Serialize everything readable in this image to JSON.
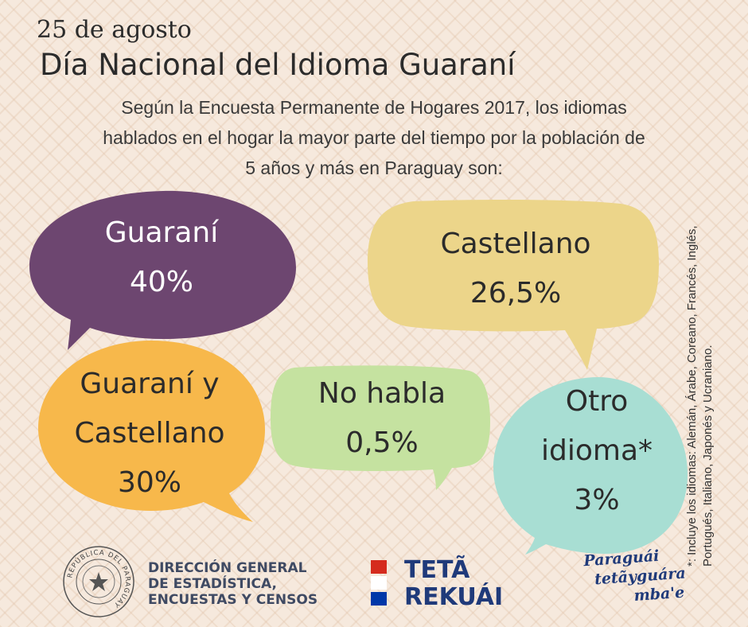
{
  "header": {
    "date": "25 de agosto",
    "title": "Día Nacional del Idioma Guaraní",
    "intro": [
      "Según la Encuesta Permanente de Hogares 2017, los idiomas",
      "hablados en el hogar la mayor parte del tiempo por la población de",
      "5 años y más en Paraguay son:"
    ]
  },
  "bubbles": [
    {
      "lines": [
        "Guaraní",
        "40%"
      ],
      "value": 40,
      "color": "#6d4670",
      "text_color": "#ffffff"
    },
    {
      "lines": [
        "Castellano",
        "26,5%"
      ],
      "value": 26.5,
      "color": "#ecd58a",
      "text_color": "#2b2b2b"
    },
    {
      "lines": [
        "Guaraní y",
        "Castellano",
        "30%"
      ],
      "value": 30,
      "color": "#f7b84b",
      "text_color": "#2b2b2b"
    },
    {
      "lines": [
        "No habla",
        "0,5%"
      ],
      "value": 0.5,
      "color": "#c5e2a0",
      "text_color": "#2b2b2b"
    },
    {
      "lines": [
        "Otro",
        "idioma*",
        "3%"
      ],
      "value": 3,
      "color": "#a8ded3",
      "text_color": "#2b2b2b"
    }
  ],
  "footnote": [
    "*: Incluye los idiomas: Alemán, Árabe, Coreano, Francés, Inglés,",
    "Portugués, Italiano, Japonés y Ucraniano."
  ],
  "logos": {
    "seal_text": "REPÚBLICA DEL PARAGUAY",
    "seal_icon": "national-seal-icon",
    "dgeec": [
      "DIRECCIÓN GENERAL",
      "DE ESTADÍSTICA,",
      "ENCUESTAS Y CENSOS"
    ],
    "teta_rekuai": [
      "TETÃ",
      "REKUÁI"
    ],
    "flag_colors": [
      "#d52b1e",
      "#ffffff",
      "#0038a8"
    ],
    "slogan": [
      "Paraguái",
      "tetãyguára",
      "mba'e"
    ]
  }
}
